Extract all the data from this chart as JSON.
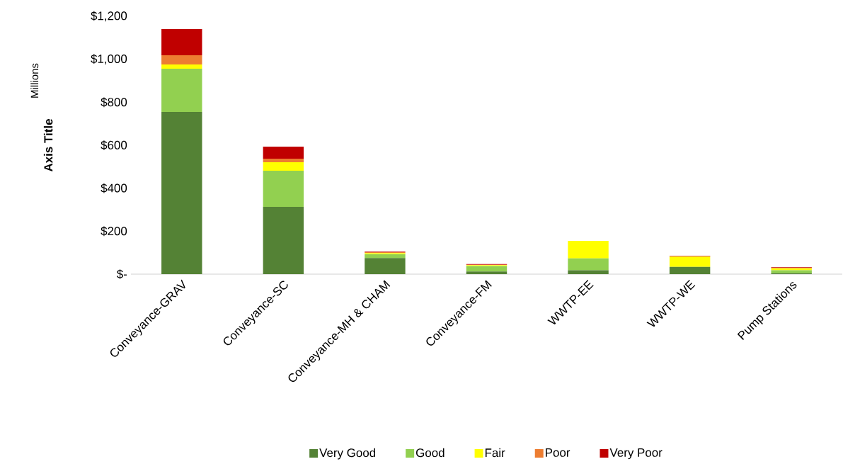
{
  "chart_data": {
    "type": "bar",
    "stacked": true,
    "legend": "bottom",
    "ylabel": "Axis Title",
    "annotations": [
      "Millions"
    ],
    "categories": [
      "Conveyance-GRAV",
      "Conveyance-SC",
      "Conveyance-MH & CHAM",
      "Conveyance-FM",
      "WWTP-EE",
      "WWTP-WE",
      "Pump Stations"
    ],
    "ylim": [
      0,
      1200
    ],
    "yticks": [
      {
        "value": 0,
        "label": "$-"
      },
      {
        "value": 200,
        "label": "$200"
      },
      {
        "value": 400,
        "label": "$400"
      },
      {
        "value": 600,
        "label": "$600"
      },
      {
        "value": 800,
        "label": "$800"
      },
      {
        "value": 1000,
        "label": "$1,000"
      },
      {
        "value": 1200,
        "label": "$1,200"
      }
    ],
    "series": [
      {
        "name": "Very Good",
        "color": "#548235",
        "values": [
          755,
          313,
          75,
          12,
          18,
          34,
          5
        ]
      },
      {
        "name": "Good",
        "color": "#92d050",
        "values": [
          201,
          168,
          18,
          26,
          55,
          0,
          13
        ]
      },
      {
        "name": "Fair",
        "color": "#ffff00",
        "values": [
          20,
          40,
          5,
          4,
          82,
          48,
          9
        ]
      },
      {
        "name": "Poor",
        "color": "#ed7d31",
        "values": [
          43,
          16,
          4,
          2,
          0,
          1,
          2
        ]
      },
      {
        "name": "Very Poor",
        "color": "#c00000",
        "values": [
          122,
          56,
          3,
          3,
          0,
          3,
          3
        ]
      }
    ]
  }
}
